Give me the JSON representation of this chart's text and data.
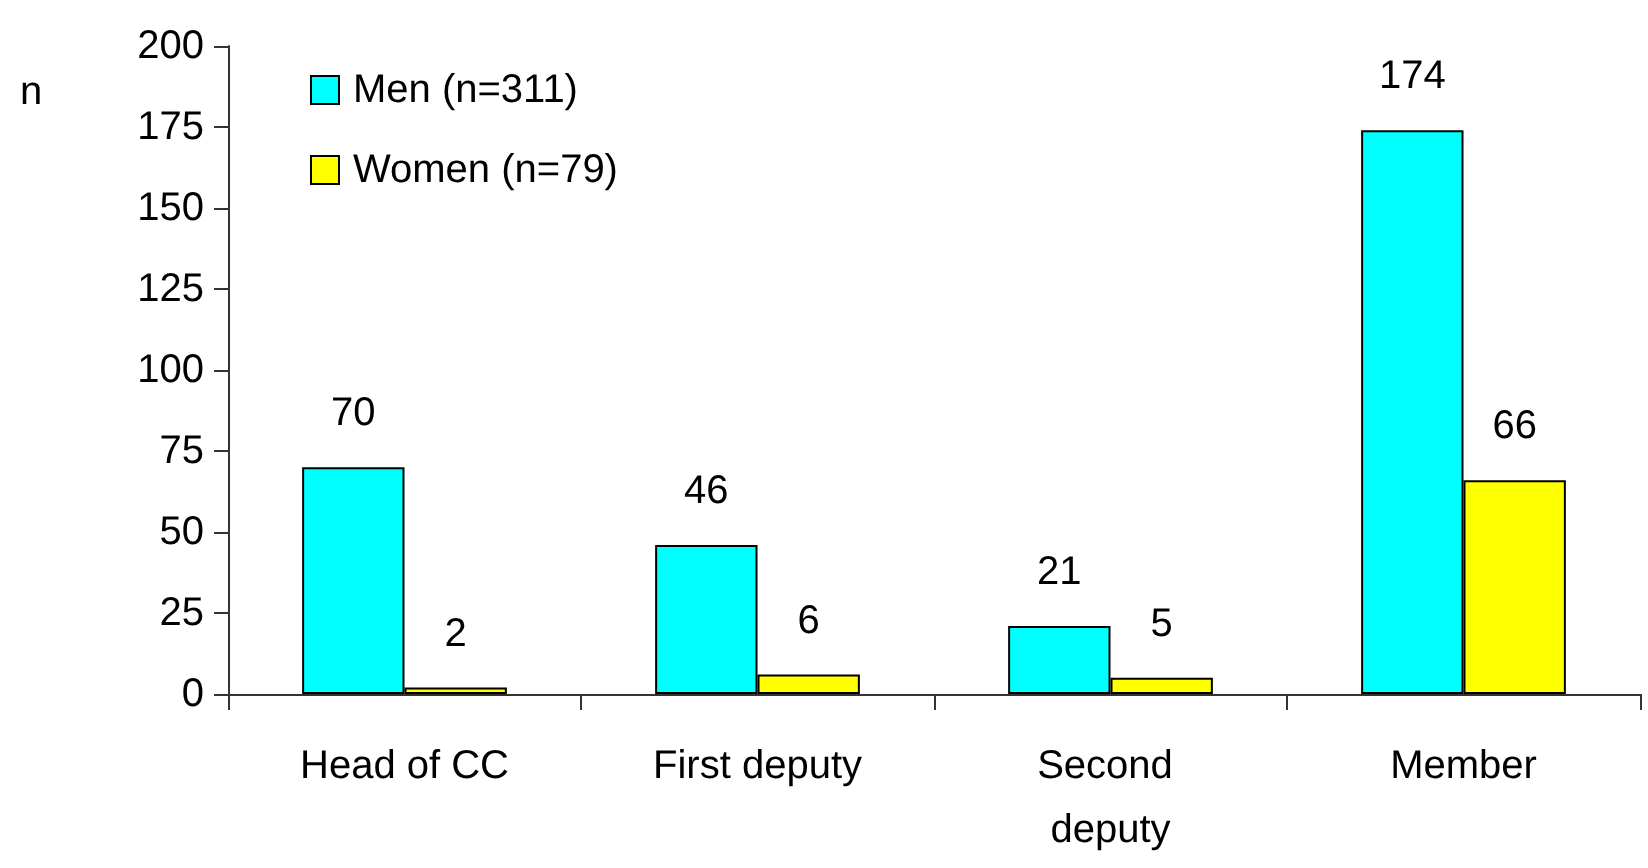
{
  "chart_data": {
    "type": "bar",
    "ylabel": "n",
    "categories": [
      "Head of CC",
      "First deputy",
      "Second deputy",
      "Member"
    ],
    "series": [
      {
        "name": "Men (n=311)",
        "color": "#00ffff",
        "values": [
          70,
          46,
          21,
          174
        ]
      },
      {
        "name": "Women (n=79)",
        "color": "#ffff00",
        "values": [
          2,
          6,
          5,
          66
        ]
      }
    ],
    "ylim": [
      0,
      200
    ],
    "yticks": [
      0,
      25,
      50,
      75,
      100,
      125,
      150,
      175,
      200
    ],
    "grid": false,
    "legend": "top left",
    "data_labels": true
  }
}
